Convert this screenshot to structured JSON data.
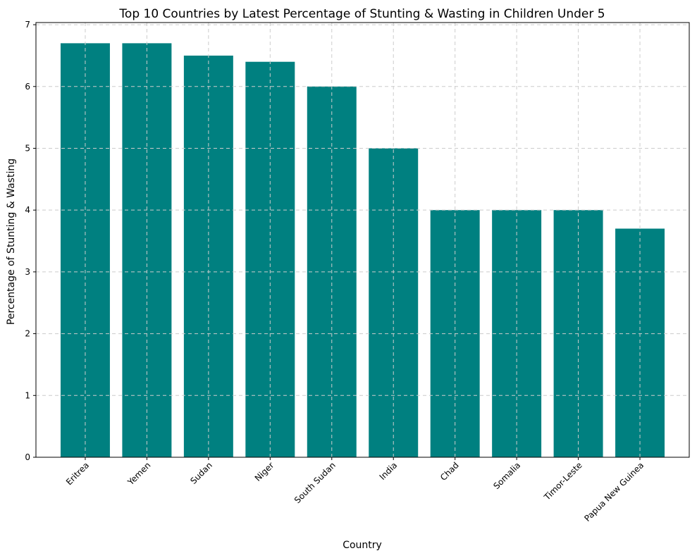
{
  "chart_data": {
    "type": "bar",
    "title": "Top 10 Countries by Latest Percentage of Stunting & Wasting in Children Under 5",
    "xlabel": "Country",
    "ylabel": "Percentage of Stunting & Wasting",
    "categories": [
      "Eritrea",
      "Yemen",
      "Sudan",
      "Niger",
      "South Sudan",
      "India",
      "Chad",
      "Somalia",
      "Timor-Leste",
      "Papua New Guinea"
    ],
    "values": [
      6.7,
      6.7,
      6.5,
      6.4,
      6.0,
      5.0,
      4.0,
      4.0,
      4.0,
      3.7
    ],
    "ylim": [
      0,
      7.035
    ],
    "yticks": [
      0,
      1,
      2,
      3,
      4,
      5,
      6,
      7
    ],
    "grid": true,
    "bar_color": "#008080"
  }
}
